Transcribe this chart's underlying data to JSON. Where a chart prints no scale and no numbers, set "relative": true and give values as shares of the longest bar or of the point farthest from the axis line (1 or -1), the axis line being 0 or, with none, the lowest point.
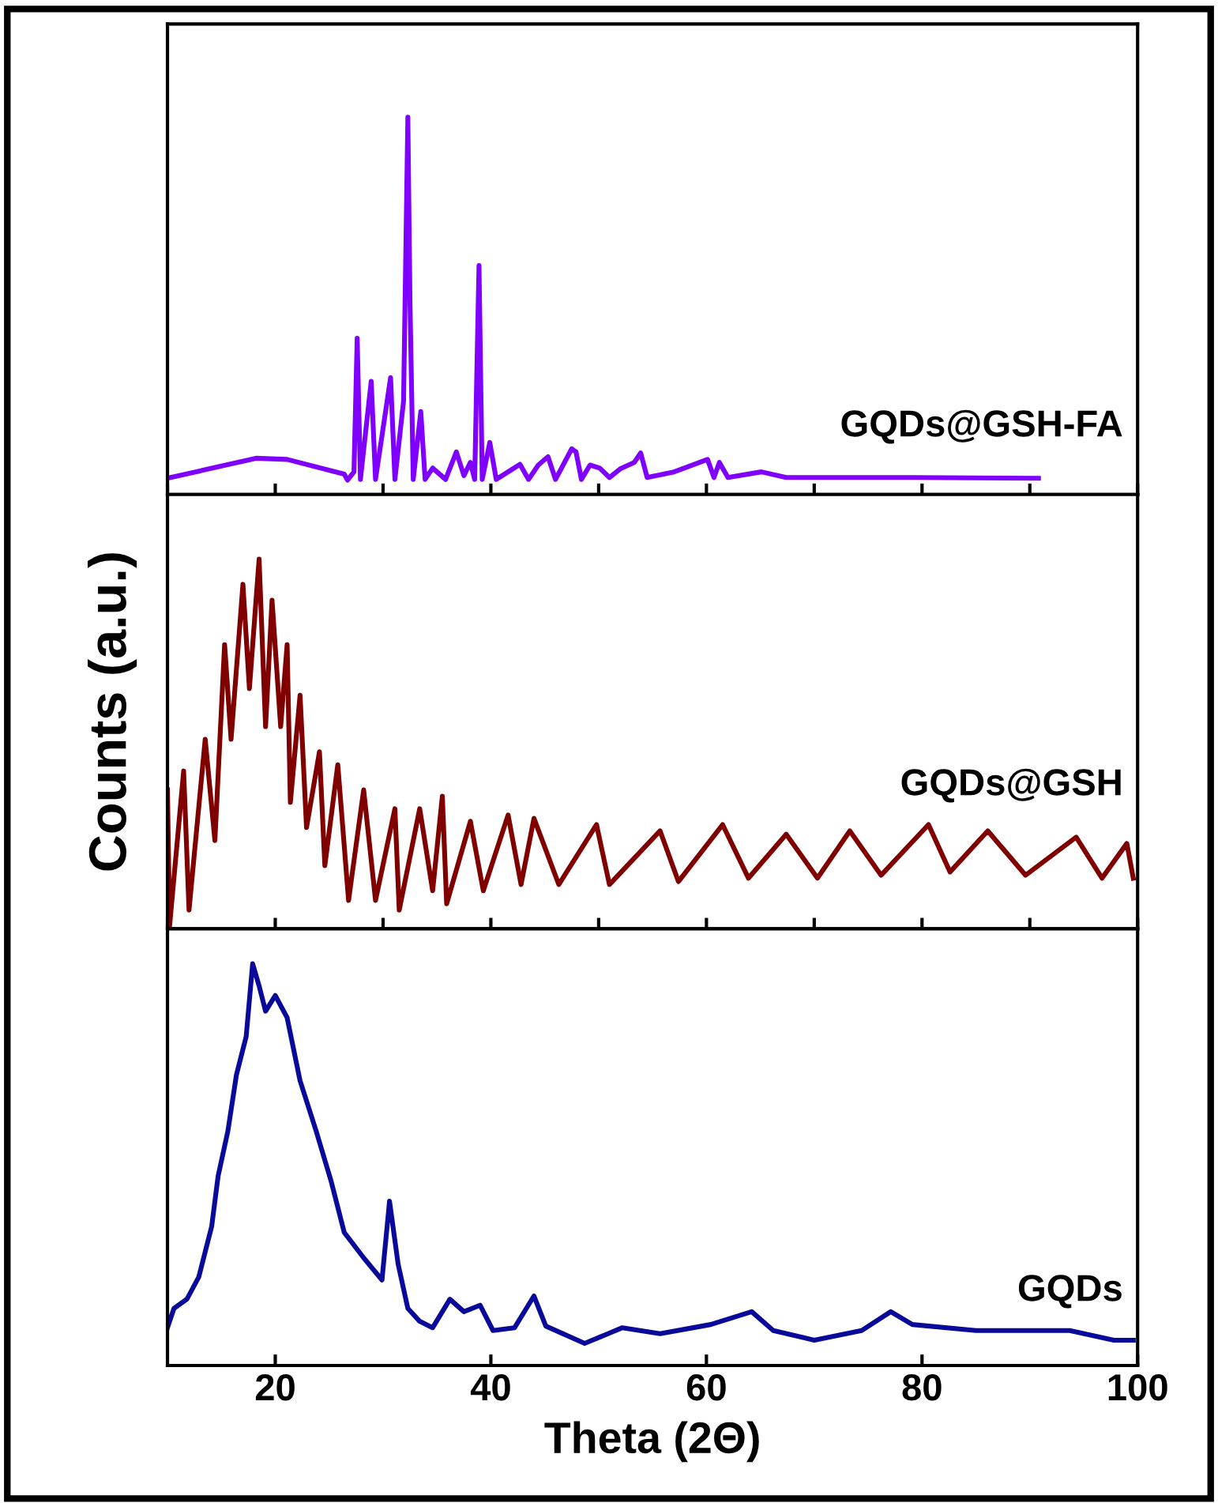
{
  "chart_data": [
    {
      "type": "line",
      "relative": true,
      "xlim": [
        10,
        100
      ],
      "tick_labels": false,
      "series": [
        {
          "name": "GQDs@GSH-FA",
          "color": "#7f00ff",
          "x": [
            10,
            18.2,
            21.1,
            26.4,
            26.7,
            27.3,
            27.6,
            27.9,
            28.9,
            29.3,
            30.7,
            31.1,
            31.9,
            32.3,
            32.5,
            32.8,
            33.5,
            33.9,
            34.6,
            35.8,
            36.8,
            37.5,
            38.1,
            38.5,
            38.9,
            39.2,
            39.9,
            40.5,
            42.7,
            43.5,
            44.4,
            45.3,
            46,
            47.5,
            47.9,
            48.4,
            49.2,
            50.1,
            51,
            52,
            53.3,
            53.9,
            54.5,
            56.9,
            60.1,
            60.7,
            61.2,
            62,
            65.1,
            67.4,
            79.1,
            90.8
          ],
          "values": [
            0.043,
            0.096,
            0.093,
            0.054,
            0.038,
            0.06,
            0.414,
            0.04,
            0.3,
            0.04,
            0.31,
            0.04,
            0.247,
            1.0,
            0.506,
            0.04,
            0.22,
            0.04,
            0.07,
            0.04,
            0.113,
            0.05,
            0.085,
            0.04,
            0.607,
            0.04,
            0.138,
            0.04,
            0.08,
            0.04,
            0.078,
            0.1,
            0.04,
            0.121,
            0.113,
            0.04,
            0.078,
            0.07,
            0.045,
            0.068,
            0.085,
            0.11,
            0.045,
            0.059,
            0.093,
            0.045,
            0.085,
            0.045,
            0.06,
            0.045,
            0.045,
            0.043
          ]
        }
      ]
    },
    {
      "type": "line",
      "relative": true,
      "xlim": [
        10,
        100
      ],
      "tick_labels": false,
      "ylabel": "Counts (a.u.)",
      "series": [
        {
          "name": "GQDs@GSH",
          "color": "#800000",
          "x": [
            10,
            10.2,
            11.5,
            12.0,
            13.5,
            14.4,
            15.3,
            15.9,
            17.0,
            17.6,
            18.5,
            19.1,
            19.7,
            20.5,
            21.1,
            21.4,
            22.3,
            22.9,
            24.1,
            24.6,
            25.8,
            26.8,
            28.2,
            29.3,
            31.1,
            31.5,
            33.4,
            34.6,
            35.5,
            35.9,
            38.1,
            39.3,
            41.6,
            42.8,
            44.0,
            46.3,
            49.8,
            51.0,
            55.7,
            57.4,
            61.5,
            63.9,
            67.4,
            70.3,
            73.3,
            76.2,
            80.6,
            82.6,
            86.1,
            89.6,
            94.3,
            96.7,
            99.0,
            99.6
          ],
          "values": [
            0.376,
            0.009,
            0.427,
            0.051,
            0.513,
            0.239,
            0.769,
            0.513,
            0.932,
            0.65,
            1.0,
            0.547,
            0.889,
            0.547,
            0.769,
            0.342,
            0.632,
            0.274,
            0.479,
            0.171,
            0.444,
            0.077,
            0.376,
            0.077,
            0.325,
            0.051,
            0.325,
            0.103,
            0.359,
            0.068,
            0.291,
            0.103,
            0.308,
            0.12,
            0.299,
            0.12,
            0.282,
            0.12,
            0.265,
            0.128,
            0.282,
            0.137,
            0.256,
            0.137,
            0.265,
            0.145,
            0.282,
            0.154,
            0.265,
            0.145,
            0.248,
            0.137,
            0.231,
            0.137
          ]
        }
      ]
    },
    {
      "type": "line",
      "relative": true,
      "xlim": [
        10,
        100
      ],
      "xticks": [
        20,
        40,
        60,
        80,
        100
      ],
      "tick_labels": "x",
      "xlabel": "Theta (2Θ)",
      "series": [
        {
          "name": "GQDs",
          "color": "#0a0a9a",
          "x": [
            10,
            10.6,
            11.8,
            12.9,
            14.1,
            14.7,
            15.6,
            16.4,
            17.3,
            17.9,
            18.5,
            19.1,
            20.0,
            21.1,
            22.3,
            23.8,
            25.2,
            26.4,
            28.2,
            29.9,
            30.6,
            31.4,
            32.3,
            33.4,
            34.6,
            36.2,
            37.5,
            39.0,
            40.2,
            42.2,
            44.0,
            45.1,
            48.7,
            52.2,
            55.7,
            60.4,
            64.2,
            66.2,
            70.0,
            74.4,
            77.1,
            79.1,
            85.0,
            93.7,
            97.8,
            99.6
          ],
          "values": [
            0.094,
            0.142,
            0.165,
            0.22,
            0.346,
            0.472,
            0.583,
            0.724,
            0.819,
            1.0,
            0.945,
            0.882,
            0.921,
            0.866,
            0.709,
            0.583,
            0.457,
            0.331,
            0.268,
            0.213,
            0.409,
            0.252,
            0.142,
            0.11,
            0.094,
            0.165,
            0.134,
            0.15,
            0.087,
            0.094,
            0.173,
            0.098,
            0.055,
            0.094,
            0.079,
            0.102,
            0.134,
            0.087,
            0.063,
            0.087,
            0.134,
            0.102,
            0.087,
            0.087,
            0.063,
            0.063
          ]
        }
      ]
    }
  ]
}
